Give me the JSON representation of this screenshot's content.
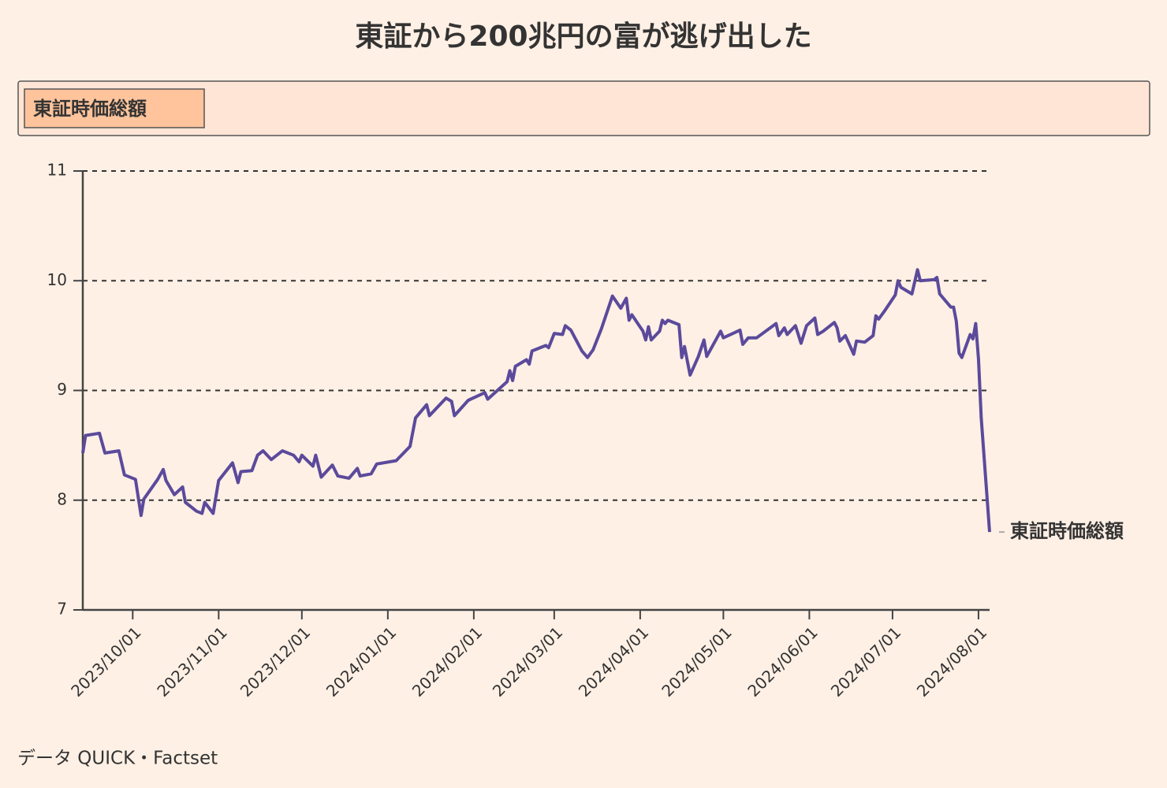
{
  "chart_data": {
    "type": "line",
    "title": "東証から200兆円の富が逃げ出した",
    "source": "データ QUICK・Factset",
    "legend": "top-left",
    "grid": true,
    "ylim": [
      7,
      11
    ],
    "yticks": [
      7,
      8,
      9,
      10,
      11
    ],
    "xlim": [
      "2023/09/13",
      "2024/08/05"
    ],
    "xticks": [
      "2023/10/01",
      "2023/11/01",
      "2023/12/01",
      "2024/01/01",
      "2024/02/01",
      "2024/03/01",
      "2024/04/01",
      "2024/05/01",
      "2024/06/01",
      "2024/07/01",
      "2024/08/01"
    ],
    "x": [
      "2023/09/13",
      "2023/09/14",
      "2023/09/19",
      "2023/09/21",
      "2023/09/26",
      "2023/09/28",
      "2023/10/02",
      "2023/10/04",
      "2023/10/05",
      "2023/10/10",
      "2023/10/12",
      "2023/10/13",
      "2023/10/16",
      "2023/10/19",
      "2023/10/20",
      "2023/10/24",
      "2023/10/26",
      "2023/10/27",
      "2023/10/30",
      "2023/11/01",
      "2023/11/06",
      "2023/11/08",
      "2023/11/09",
      "2023/11/13",
      "2023/11/15",
      "2023/11/17",
      "2023/11/20",
      "2023/11/24",
      "2023/11/28",
      "2023/11/30",
      "2023/12/01",
      "2023/12/05",
      "2023/12/06",
      "2023/12/08",
      "2023/12/12",
      "2023/12/14",
      "2023/12/18",
      "2023/12/21",
      "2023/12/22",
      "2023/12/26",
      "2023/12/28",
      "2024/01/04",
      "2024/01/09",
      "2024/01/11",
      "2024/01/15",
      "2024/01/16",
      "2024/01/22",
      "2024/01/24",
      "2024/01/25",
      "2024/01/30",
      "2024/02/05",
      "2024/02/06",
      "2024/02/13",
      "2024/02/14",
      "2024/02/15",
      "2024/02/16",
      "2024/02/20",
      "2024/02/21",
      "2024/02/22",
      "2024/02/27",
      "2024/02/28",
      "2024/03/01",
      "2024/03/04",
      "2024/03/05",
      "2024/03/07",
      "2024/03/11",
      "2024/03/13",
      "2024/03/15",
      "2024/03/18",
      "2024/03/22",
      "2024/03/25",
      "2024/03/27",
      "2024/03/28",
      "2024/03/29",
      "2024/04/02",
      "2024/04/03",
      "2024/04/04",
      "2024/04/05",
      "2024/04/08",
      "2024/04/09",
      "2024/04/10",
      "2024/04/11",
      "2024/04/15",
      "2024/04/16",
      "2024/04/17",
      "2024/04/19",
      "2024/04/22",
      "2024/04/24",
      "2024/04/25",
      "2024/04/30",
      "2024/05/01",
      "2024/05/07",
      "2024/05/08",
      "2024/05/10",
      "2024/05/13",
      "2024/05/20",
      "2024/05/21",
      "2024/05/23",
      "2024/05/24",
      "2024/05/27",
      "2024/05/29",
      "2024/05/31",
      "2024/06/03",
      "2024/06/04",
      "2024/06/06",
      "2024/06/10",
      "2024/06/11",
      "2024/06/12",
      "2024/06/14",
      "2024/06/17",
      "2024/06/18",
      "2024/06/21",
      "2024/06/24",
      "2024/06/25",
      "2024/06/26",
      "2024/06/28",
      "2024/07/02",
      "2024/07/03",
      "2024/07/04",
      "2024/07/08",
      "2024/07/10",
      "2024/07/11",
      "2024/07/16",
      "2024/07/17",
      "2024/07/18",
      "2024/07/22",
      "2024/07/23",
      "2024/07/24",
      "2024/07/25",
      "2024/07/26",
      "2024/07/29",
      "2024/07/30",
      "2024/07/31",
      "2024/08/01",
      "2024/08/02",
      "2024/08/05"
    ],
    "series": [
      {
        "name": "東証時価総額",
        "color": "#5b4a9b",
        "values": [
          8.43,
          8.59,
          8.61,
          8.43,
          8.45,
          8.23,
          8.19,
          7.86,
          8.01,
          8.19,
          8.28,
          8.18,
          8.05,
          8.12,
          7.98,
          7.9,
          7.88,
          7.98,
          7.88,
          8.18,
          8.34,
          8.16,
          8.26,
          8.27,
          8.41,
          8.45,
          8.37,
          8.45,
          8.41,
          8.35,
          8.41,
          8.31,
          8.41,
          8.21,
          8.32,
          8.22,
          8.2,
          8.29,
          8.22,
          8.24,
          8.33,
          8.36,
          8.49,
          8.75,
          8.87,
          8.77,
          8.93,
          8.9,
          8.77,
          8.91,
          8.98,
          8.92,
          9.08,
          9.18,
          9.09,
          9.22,
          9.28,
          9.24,
          9.36,
          9.41,
          9.39,
          9.52,
          9.51,
          9.59,
          9.55,
          9.36,
          9.3,
          9.37,
          9.56,
          9.86,
          9.75,
          9.84,
          9.64,
          9.69,
          9.54,
          9.46,
          9.58,
          9.46,
          9.54,
          9.64,
          9.61,
          9.64,
          9.6,
          9.3,
          9.4,
          9.14,
          9.31,
          9.46,
          9.31,
          9.54,
          9.48,
          9.55,
          9.42,
          9.48,
          9.48,
          9.61,
          9.5,
          9.57,
          9.51,
          9.59,
          9.43,
          9.59,
          9.66,
          9.51,
          9.54,
          9.62,
          9.57,
          9.45,
          9.5,
          9.33,
          9.45,
          9.44,
          9.5,
          9.68,
          9.65,
          9.72,
          9.87,
          10.0,
          9.94,
          9.88,
          10.1,
          10.0,
          10.01,
          10.03,
          9.88,
          9.76,
          9.76,
          9.63,
          9.34,
          9.3,
          9.51,
          9.47,
          9.61,
          9.29,
          8.75,
          7.71
        ]
      }
    ]
  }
}
